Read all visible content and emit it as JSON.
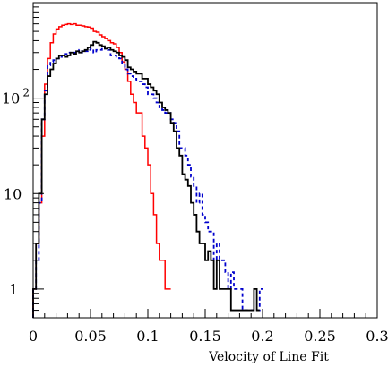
{
  "chart_data": {
    "type": "line",
    "subtype": "step-histogram",
    "title": "",
    "xlabel": "Velocity of Line Fit",
    "ylabel": "",
    "xlim": [
      0,
      0.3
    ],
    "ylim": [
      0.5,
      1000
    ],
    "yscale": "log",
    "grid": false,
    "legend": "none",
    "x_ticks": [
      {
        "value": 0,
        "label": "0"
      },
      {
        "value": 0.05,
        "label": "0.05"
      },
      {
        "value": 0.1,
        "label": "0.1"
      },
      {
        "value": 0.15,
        "label": "0.15"
      },
      {
        "value": 0.2,
        "label": "0.2"
      },
      {
        "value": 0.25,
        "label": "0.25"
      },
      {
        "value": 0.3,
        "label": "0.3"
      }
    ],
    "y_ticks": [
      {
        "value": 1,
        "base": "1",
        "exp": ""
      },
      {
        "value": 10,
        "base": "10",
        "exp": ""
      },
      {
        "value": 100,
        "base": "10",
        "exp": "2"
      }
    ],
    "bin_width": 0.0025,
    "series": [
      {
        "color": "#ff0000",
        "dash": "",
        "x0": 0,
        "values": [
          1,
          3,
          8,
          40,
          140,
          260,
          380,
          470,
          530,
          560,
          580,
          590,
          600,
          590,
          600,
          580,
          580,
          570,
          560,
          555,
          540,
          500,
          490,
          460,
          440,
          420,
          400,
          380,
          370,
          340,
          300,
          240,
          200,
          150,
          110,
          90,
          70,
          70,
          40,
          30,
          20,
          10,
          6,
          3,
          2,
          2,
          1,
          1
        ]
      },
      {
        "color": "#0000cc",
        "dash": "4,3",
        "x0": 0,
        "values": [
          1,
          2,
          8,
          60,
          120,
          220,
          240,
          250,
          260,
          270,
          280,
          290,
          300,
          290,
          300,
          310,
          320,
          300,
          310,
          320,
          330,
          300,
          320,
          320,
          340,
          330,
          320,
          280,
          280,
          270,
          260,
          230,
          200,
          180,
          170,
          160,
          150,
          150,
          140,
          130,
          110,
          110,
          100,
          90,
          80,
          75,
          70,
          70,
          60,
          55,
          45,
          30,
          30,
          25,
          20,
          15,
          12,
          8,
          10,
          6,
          5,
          4,
          4,
          2,
          3,
          2,
          2,
          1.5,
          1,
          1.5,
          1,
          1,
          1,
          0.6,
          0.6,
          0.6,
          0.6,
          0.6,
          0.6,
          1
        ]
      },
      {
        "color": "#000000",
        "dash": "",
        "x0": 0,
        "values": [
          1,
          3,
          10,
          60,
          110,
          170,
          200,
          230,
          260,
          280,
          280,
          270,
          280,
          300,
          290,
          310,
          300,
          310,
          320,
          340,
          360,
          390,
          380,
          360,
          350,
          330,
          340,
          320,
          310,
          300,
          280,
          270,
          250,
          210,
          200,
          190,
          180,
          180,
          160,
          160,
          140,
          130,
          120,
          110,
          90,
          80,
          75,
          70,
          55,
          45,
          30,
          25,
          16,
          14,
          12,
          8,
          6,
          4,
          3,
          3,
          2,
          2.5,
          2,
          1,
          2,
          1,
          1,
          1,
          1,
          0.6,
          0.6,
          0.6,
          0.6,
          0.6,
          0.6,
          0.6,
          0.6,
          1,
          0.6
        ]
      }
    ]
  }
}
